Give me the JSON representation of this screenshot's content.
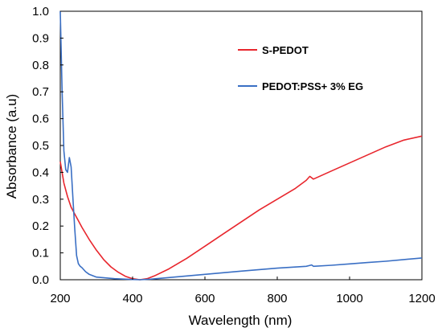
{
  "chart_data": {
    "type": "line",
    "xlabel": "Wavelength (nm)",
    "ylabel": "Absorbance (a.u)",
    "xlim": [
      200,
      1200
    ],
    "ylim": [
      0,
      1.0
    ],
    "x_ticks": [
      200,
      400,
      600,
      800,
      1000,
      1200
    ],
    "x_tick_labels": [
      "200",
      "400",
      "600",
      "800",
      "1000",
      "1200"
    ],
    "y_ticks": [
      0,
      0.1,
      0.2,
      0.3,
      0.4,
      0.5,
      0.6,
      0.7,
      0.8,
      0.9,
      1.0
    ],
    "y_tick_labels": [
      "0.0",
      "0.1",
      "0.2",
      "0.3",
      "0.4",
      "0.5",
      "0.6",
      "0.7",
      "0.8",
      "0.9",
      "1.0"
    ],
    "grid": false,
    "legend_position": "top-right",
    "series": [
      {
        "name": "S-PEDOT",
        "color": "#e8262d",
        "x": [
          200,
          210,
          220,
          230,
          240,
          250,
          260,
          280,
          300,
          320,
          340,
          360,
          380,
          400,
          420,
          440,
          460,
          500,
          550,
          600,
          650,
          700,
          750,
          800,
          850,
          880,
          890,
          900,
          950,
          1000,
          1050,
          1100,
          1150,
          1200
        ],
        "y": [
          0.44,
          0.36,
          0.31,
          0.27,
          0.245,
          0.22,
          0.195,
          0.15,
          0.11,
          0.075,
          0.048,
          0.028,
          0.013,
          0.004,
          0.0,
          0.004,
          0.014,
          0.04,
          0.08,
          0.125,
          0.17,
          0.215,
          0.26,
          0.3,
          0.34,
          0.37,
          0.385,
          0.375,
          0.405,
          0.435,
          0.465,
          0.495,
          0.52,
          0.535
        ]
      },
      {
        "name": "PEDOT:PSS+ 3% EG",
        "color": "#3a6fc4",
        "x": [
          200,
          205,
          210,
          215,
          220,
          225,
          230,
          235,
          240,
          245,
          250,
          255,
          260,
          270,
          280,
          300,
          350,
          400,
          420,
          450,
          500,
          600,
          700,
          800,
          880,
          895,
          900,
          950,
          1000,
          1050,
          1100,
          1150,
          1200
        ],
        "y": [
          1.0,
          0.7,
          0.48,
          0.41,
          0.4,
          0.455,
          0.42,
          0.3,
          0.19,
          0.09,
          0.06,
          0.05,
          0.045,
          0.03,
          0.02,
          0.01,
          0.004,
          0.001,
          0.0,
          0.002,
          0.008,
          0.02,
          0.032,
          0.043,
          0.05,
          0.055,
          0.05,
          0.054,
          0.059,
          0.064,
          0.069,
          0.075,
          0.081
        ]
      }
    ]
  }
}
